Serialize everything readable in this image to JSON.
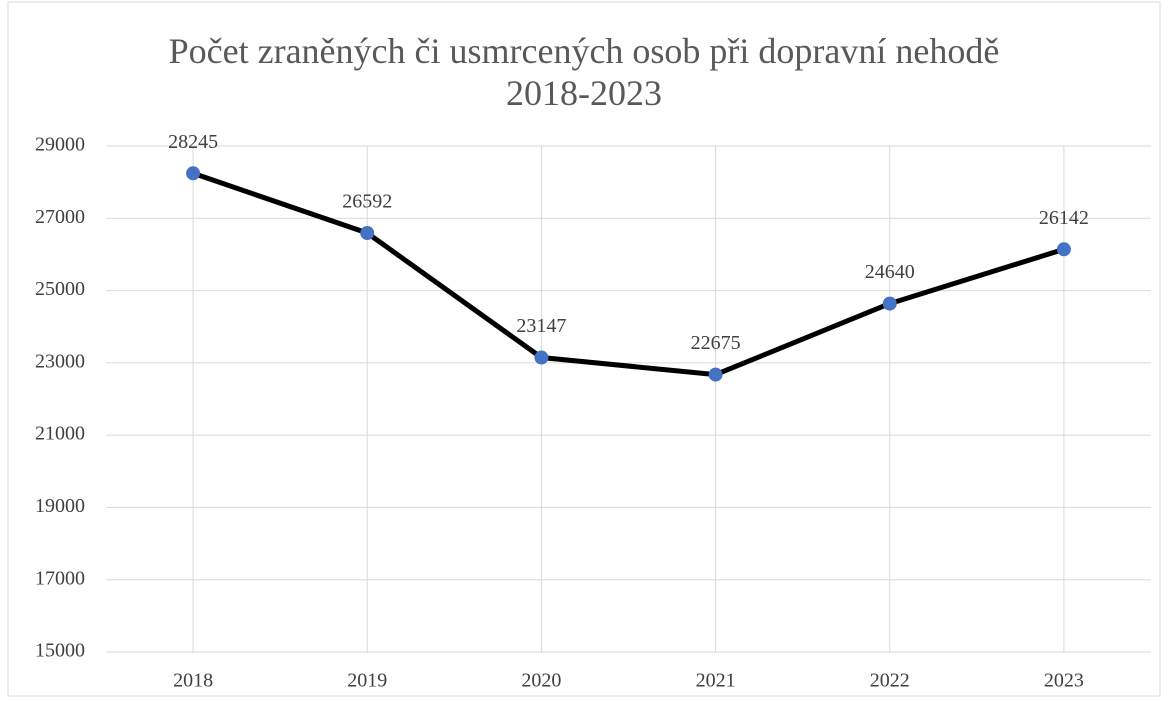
{
  "chart_data": {
    "type": "line",
    "title": "Počet zraněných či usmrcených osob při dopravní nehodě 2018-2023",
    "categories": [
      "2018",
      "2019",
      "2020",
      "2021",
      "2022",
      "2023"
    ],
    "series": [
      {
        "name": "Počet",
        "color": "#000000",
        "marker_color": "#4472c4",
        "values": [
          28245,
          26592,
          23147,
          22675,
          24640,
          26142
        ]
      }
    ],
    "ylim": [
      15000,
      29000
    ],
    "yticks": [
      15000,
      17000,
      19000,
      21000,
      23000,
      25000,
      27000,
      29000
    ],
    "grid": true
  }
}
